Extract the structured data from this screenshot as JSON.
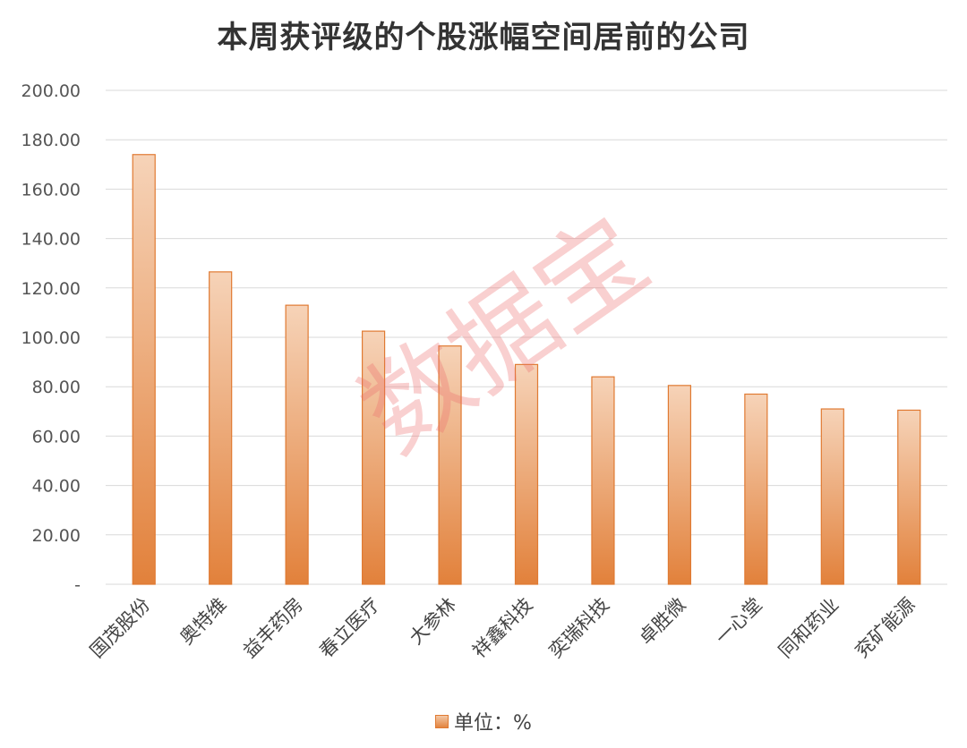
{
  "chart_data": {
    "type": "bar",
    "title": "本周获评级的个股涨幅空间居前的公司",
    "categories": [
      "国茂股份",
      "奥特维",
      "益丰药房",
      "春立医疗",
      "大参林",
      "祥鑫科技",
      "奕瑞科技",
      "卓胜微",
      "一心堂",
      "同和药业",
      "兖矿能源"
    ],
    "series": [
      {
        "name": "单位：%",
        "values": [
          174.0,
          126.5,
          113.0,
          102.5,
          96.5,
          89.0,
          84.0,
          80.5,
          77.0,
          71.0,
          70.5
        ]
      }
    ],
    "y_ticks": [
      "-",
      "20.00",
      "40.00",
      "60.00",
      "80.00",
      "100.00",
      "120.00",
      "140.00",
      "160.00",
      "180.00",
      "200.00"
    ],
    "ylim": [
      0,
      200
    ],
    "grid": true,
    "legend_position": "bottom",
    "bar_color": "#e2843f",
    "bar_color_light": "#f5d0b3"
  },
  "watermark": "数据宝"
}
